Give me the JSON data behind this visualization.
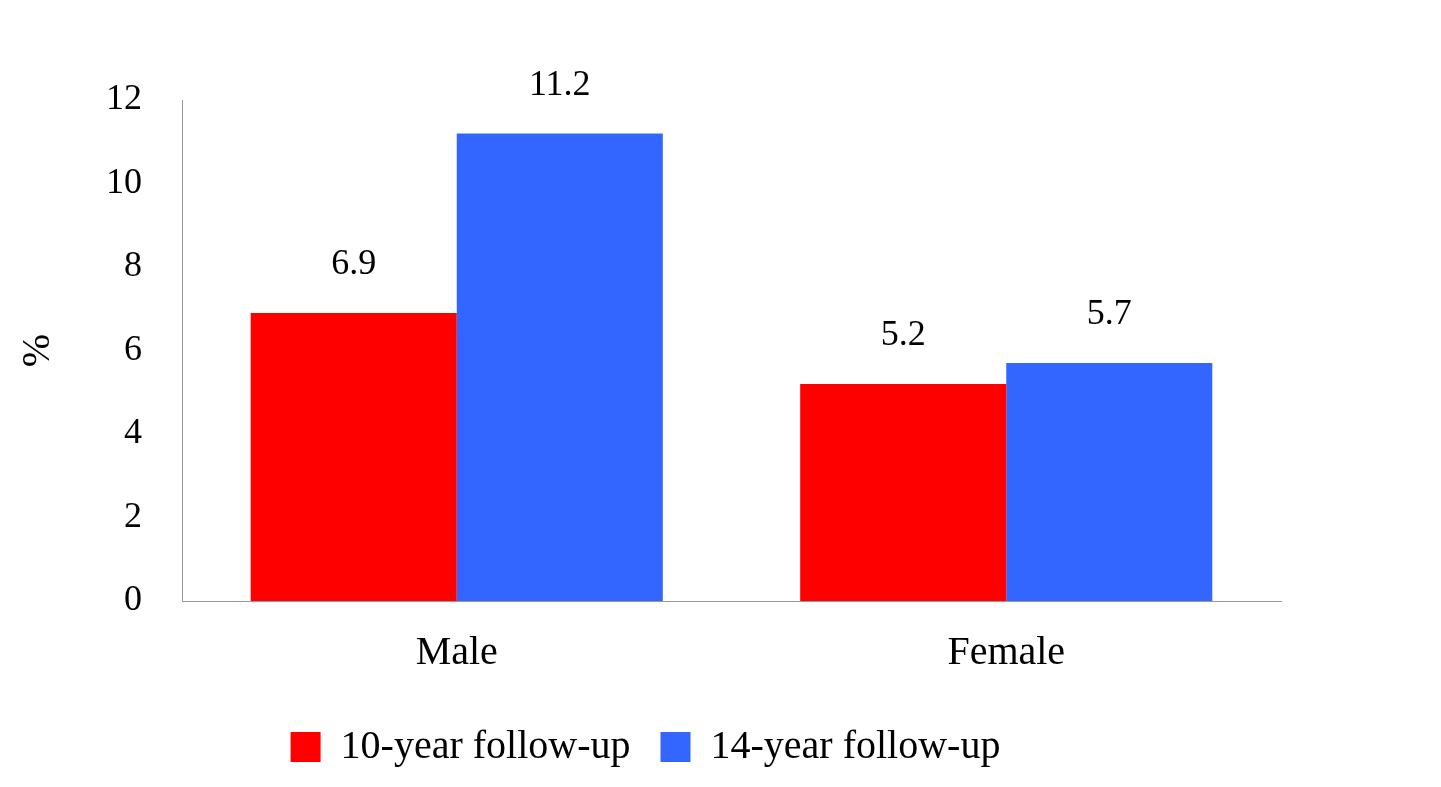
{
  "chart_data": {
    "type": "bar",
    "ylabel": "%",
    "categories": [
      "Male",
      "Female"
    ],
    "series": [
      {
        "name": "10-year follow-up",
        "color": "#ff0000",
        "values": [
          6.9,
          5.2
        ]
      },
      {
        "name": "14-year follow-up",
        "color": "#3366ff",
        "values": [
          11.2,
          5.7
        ]
      }
    ],
    "ylim": [
      0,
      12
    ],
    "yticks": [
      0,
      2,
      4,
      6,
      8,
      10,
      12
    ],
    "grid": false,
    "legend": "bottom",
    "data_labels": true
  }
}
